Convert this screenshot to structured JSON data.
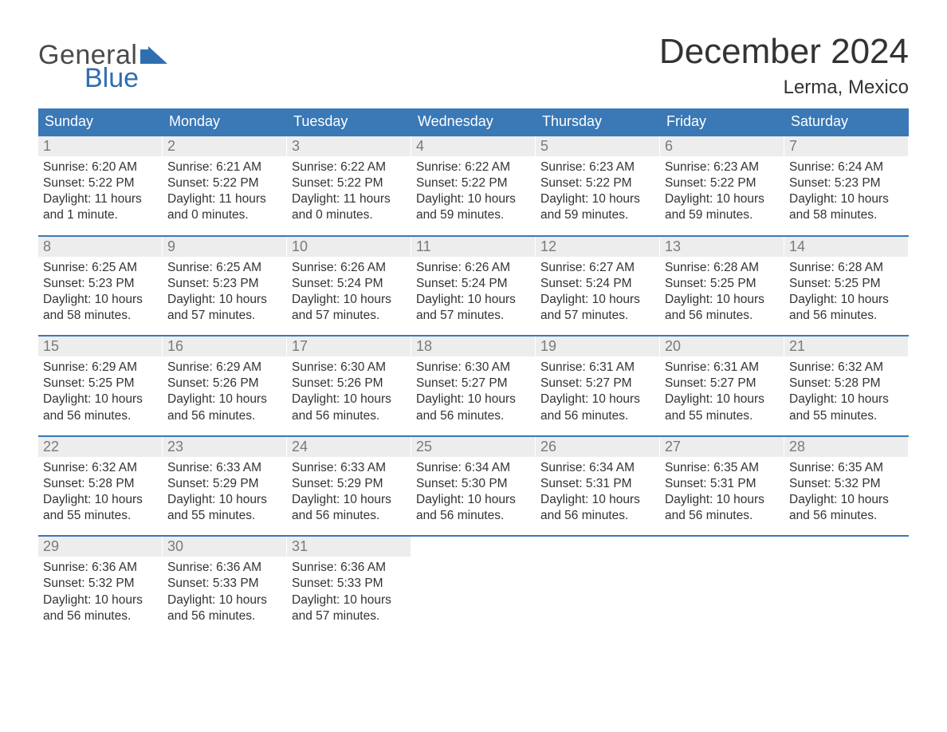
{
  "logo": {
    "text_general": "General",
    "text_blue": "Blue"
  },
  "title": "December 2024",
  "location": "Lerma, Mexico",
  "colors": {
    "header_bg": "#3a78b6",
    "header_text": "#ffffff",
    "daynum_bg": "#ededed",
    "daynum_text": "#7a7a7a",
    "body_text": "#333333",
    "week_border": "#3a78b6",
    "logo_gray": "#4a4a4a",
    "logo_blue": "#2f6fb0",
    "background": "#ffffff"
  },
  "day_names": [
    "Sunday",
    "Monday",
    "Tuesday",
    "Wednesday",
    "Thursday",
    "Friday",
    "Saturday"
  ],
  "weeks": [
    [
      {
        "n": "1",
        "sr": "Sunrise: 6:20 AM",
        "ss": "Sunset: 5:22 PM",
        "d1": "Daylight: 11 hours",
        "d2": "and 1 minute."
      },
      {
        "n": "2",
        "sr": "Sunrise: 6:21 AM",
        "ss": "Sunset: 5:22 PM",
        "d1": "Daylight: 11 hours",
        "d2": "and 0 minutes."
      },
      {
        "n": "3",
        "sr": "Sunrise: 6:22 AM",
        "ss": "Sunset: 5:22 PM",
        "d1": "Daylight: 11 hours",
        "d2": "and 0 minutes."
      },
      {
        "n": "4",
        "sr": "Sunrise: 6:22 AM",
        "ss": "Sunset: 5:22 PM",
        "d1": "Daylight: 10 hours",
        "d2": "and 59 minutes."
      },
      {
        "n": "5",
        "sr": "Sunrise: 6:23 AM",
        "ss": "Sunset: 5:22 PM",
        "d1": "Daylight: 10 hours",
        "d2": "and 59 minutes."
      },
      {
        "n": "6",
        "sr": "Sunrise: 6:23 AM",
        "ss": "Sunset: 5:22 PM",
        "d1": "Daylight: 10 hours",
        "d2": "and 59 minutes."
      },
      {
        "n": "7",
        "sr": "Sunrise: 6:24 AM",
        "ss": "Sunset: 5:23 PM",
        "d1": "Daylight: 10 hours",
        "d2": "and 58 minutes."
      }
    ],
    [
      {
        "n": "8",
        "sr": "Sunrise: 6:25 AM",
        "ss": "Sunset: 5:23 PM",
        "d1": "Daylight: 10 hours",
        "d2": "and 58 minutes."
      },
      {
        "n": "9",
        "sr": "Sunrise: 6:25 AM",
        "ss": "Sunset: 5:23 PM",
        "d1": "Daylight: 10 hours",
        "d2": "and 57 minutes."
      },
      {
        "n": "10",
        "sr": "Sunrise: 6:26 AM",
        "ss": "Sunset: 5:24 PM",
        "d1": "Daylight: 10 hours",
        "d2": "and 57 minutes."
      },
      {
        "n": "11",
        "sr": "Sunrise: 6:26 AM",
        "ss": "Sunset: 5:24 PM",
        "d1": "Daylight: 10 hours",
        "d2": "and 57 minutes."
      },
      {
        "n": "12",
        "sr": "Sunrise: 6:27 AM",
        "ss": "Sunset: 5:24 PM",
        "d1": "Daylight: 10 hours",
        "d2": "and 57 minutes."
      },
      {
        "n": "13",
        "sr": "Sunrise: 6:28 AM",
        "ss": "Sunset: 5:25 PM",
        "d1": "Daylight: 10 hours",
        "d2": "and 56 minutes."
      },
      {
        "n": "14",
        "sr": "Sunrise: 6:28 AM",
        "ss": "Sunset: 5:25 PM",
        "d1": "Daylight: 10 hours",
        "d2": "and 56 minutes."
      }
    ],
    [
      {
        "n": "15",
        "sr": "Sunrise: 6:29 AM",
        "ss": "Sunset: 5:25 PM",
        "d1": "Daylight: 10 hours",
        "d2": "and 56 minutes."
      },
      {
        "n": "16",
        "sr": "Sunrise: 6:29 AM",
        "ss": "Sunset: 5:26 PM",
        "d1": "Daylight: 10 hours",
        "d2": "and 56 minutes."
      },
      {
        "n": "17",
        "sr": "Sunrise: 6:30 AM",
        "ss": "Sunset: 5:26 PM",
        "d1": "Daylight: 10 hours",
        "d2": "and 56 minutes."
      },
      {
        "n": "18",
        "sr": "Sunrise: 6:30 AM",
        "ss": "Sunset: 5:27 PM",
        "d1": "Daylight: 10 hours",
        "d2": "and 56 minutes."
      },
      {
        "n": "19",
        "sr": "Sunrise: 6:31 AM",
        "ss": "Sunset: 5:27 PM",
        "d1": "Daylight: 10 hours",
        "d2": "and 56 minutes."
      },
      {
        "n": "20",
        "sr": "Sunrise: 6:31 AM",
        "ss": "Sunset: 5:27 PM",
        "d1": "Daylight: 10 hours",
        "d2": "and 55 minutes."
      },
      {
        "n": "21",
        "sr": "Sunrise: 6:32 AM",
        "ss": "Sunset: 5:28 PM",
        "d1": "Daylight: 10 hours",
        "d2": "and 55 minutes."
      }
    ],
    [
      {
        "n": "22",
        "sr": "Sunrise: 6:32 AM",
        "ss": "Sunset: 5:28 PM",
        "d1": "Daylight: 10 hours",
        "d2": "and 55 minutes."
      },
      {
        "n": "23",
        "sr": "Sunrise: 6:33 AM",
        "ss": "Sunset: 5:29 PM",
        "d1": "Daylight: 10 hours",
        "d2": "and 55 minutes."
      },
      {
        "n": "24",
        "sr": "Sunrise: 6:33 AM",
        "ss": "Sunset: 5:29 PM",
        "d1": "Daylight: 10 hours",
        "d2": "and 56 minutes."
      },
      {
        "n": "25",
        "sr": "Sunrise: 6:34 AM",
        "ss": "Sunset: 5:30 PM",
        "d1": "Daylight: 10 hours",
        "d2": "and 56 minutes."
      },
      {
        "n": "26",
        "sr": "Sunrise: 6:34 AM",
        "ss": "Sunset: 5:31 PM",
        "d1": "Daylight: 10 hours",
        "d2": "and 56 minutes."
      },
      {
        "n": "27",
        "sr": "Sunrise: 6:35 AM",
        "ss": "Sunset: 5:31 PM",
        "d1": "Daylight: 10 hours",
        "d2": "and 56 minutes."
      },
      {
        "n": "28",
        "sr": "Sunrise: 6:35 AM",
        "ss": "Sunset: 5:32 PM",
        "d1": "Daylight: 10 hours",
        "d2": "and 56 minutes."
      }
    ],
    [
      {
        "n": "29",
        "sr": "Sunrise: 6:36 AM",
        "ss": "Sunset: 5:32 PM",
        "d1": "Daylight: 10 hours",
        "d2": "and 56 minutes."
      },
      {
        "n": "30",
        "sr": "Sunrise: 6:36 AM",
        "ss": "Sunset: 5:33 PM",
        "d1": "Daylight: 10 hours",
        "d2": "and 56 minutes."
      },
      {
        "n": "31",
        "sr": "Sunrise: 6:36 AM",
        "ss": "Sunset: 5:33 PM",
        "d1": "Daylight: 10 hours",
        "d2": "and 57 minutes."
      },
      null,
      null,
      null,
      null
    ]
  ]
}
